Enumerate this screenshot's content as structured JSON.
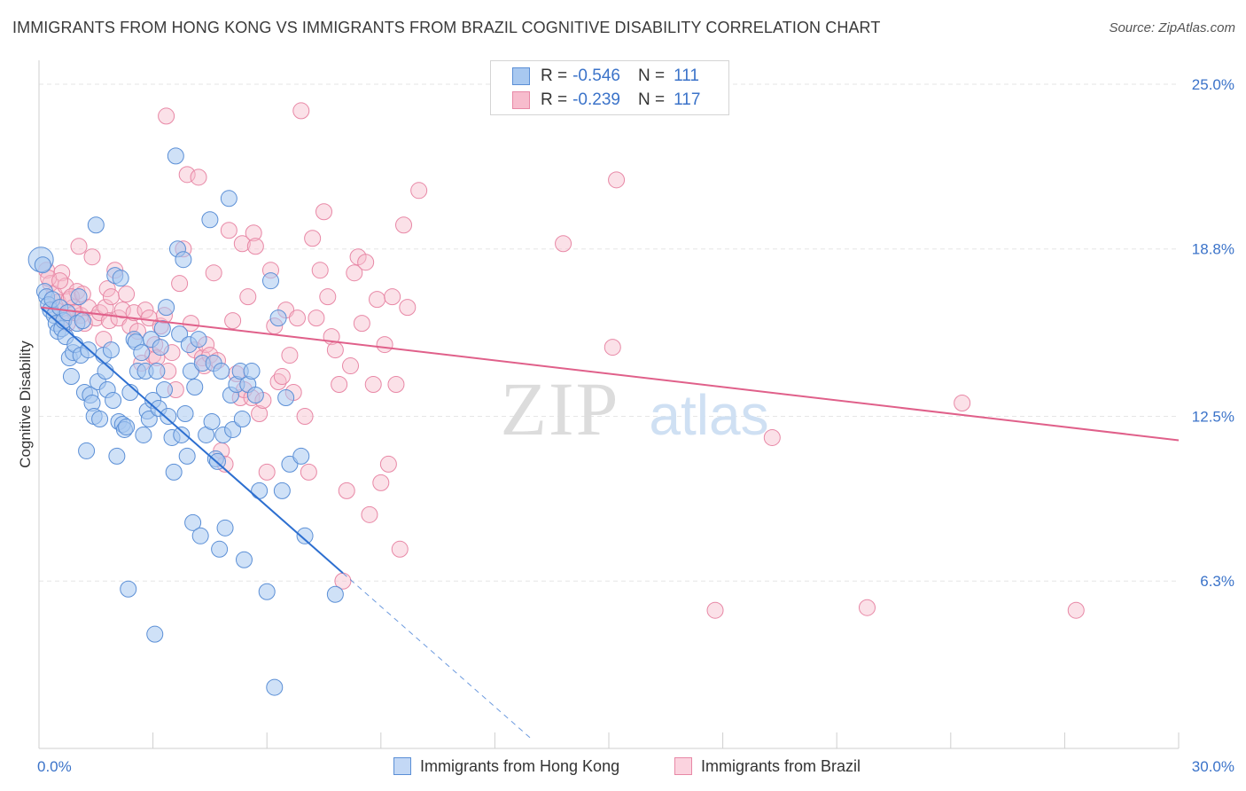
{
  "title": "IMMIGRANTS FROM HONG KONG VS IMMIGRANTS FROM BRAZIL COGNITIVE DISABILITY CORRELATION CHART",
  "source": "Source: ZipAtlas.com",
  "watermark": {
    "zip": "ZIP",
    "atlas": "atlas"
  },
  "colors": {
    "blue_fill": "#a8c8f0",
    "blue_stroke": "#5b8fd6",
    "blue_line": "#2d6fd0",
    "pink_fill": "#f7bccd",
    "pink_stroke": "#e888a6",
    "pink_line": "#e0608a",
    "axis_label": "#3b73c9",
    "grid": "#e6e6e6"
  },
  "legend": {
    "rows": [
      {
        "r_label": "R =",
        "r_value": "-0.546",
        "n_label": "N =",
        "n_value": "111"
      },
      {
        "r_label": "R =",
        "r_value": "-0.239",
        "n_label": "N =",
        "n_value": "117"
      }
    ]
  },
  "bottom_legend": {
    "hong_kong": "Immigrants from Hong Kong",
    "brazil": "Immigrants from Brazil"
  },
  "chart_data": {
    "type": "scatter",
    "xlabel": "",
    "ylabel": "Cognitive Disability",
    "xlim": [
      0,
      30
    ],
    "ylim": [
      0,
      25.9
    ],
    "x_tick_labels": [
      "0.0%",
      "30.0%"
    ],
    "y_ticks": [
      6.3,
      12.5,
      18.8,
      25.0
    ],
    "y_tick_labels": [
      "6.3%",
      "12.5%",
      "18.8%",
      "25.0%"
    ],
    "grid": true,
    "legend_position": "top-center",
    "series": [
      {
        "name": "Immigrants from Hong Kong",
        "r": -0.546,
        "n": 111,
        "trend": {
          "x0": 0.05,
          "y0": 16.6,
          "x1": 8.0,
          "y1": 6.6,
          "dash_to_x": 13.0
        },
        "points": [
          [
            0.05,
            18.4
          ],
          [
            0.1,
            18.2
          ],
          [
            0.15,
            17.2
          ],
          [
            0.2,
            17.0
          ],
          [
            0.25,
            16.7
          ],
          [
            0.3,
            16.5
          ],
          [
            0.35,
            16.9
          ],
          [
            0.4,
            16.3
          ],
          [
            0.45,
            16.0
          ],
          [
            0.5,
            15.7
          ],
          [
            0.55,
            16.6
          ],
          [
            0.6,
            15.8
          ],
          [
            0.65,
            16.1
          ],
          [
            0.7,
            15.5
          ],
          [
            0.75,
            16.4
          ],
          [
            0.8,
            14.7
          ],
          [
            0.85,
            14.0
          ],
          [
            0.9,
            14.9
          ],
          [
            0.95,
            15.2
          ],
          [
            1.0,
            16.0
          ],
          [
            1.05,
            17.0
          ],
          [
            1.1,
            14.8
          ],
          [
            1.15,
            16.1
          ],
          [
            1.2,
            13.4
          ],
          [
            1.25,
            11.2
          ],
          [
            1.3,
            15.0
          ],
          [
            1.35,
            13.3
          ],
          [
            1.4,
            13.0
          ],
          [
            1.45,
            12.5
          ],
          [
            1.5,
            19.7
          ],
          [
            1.55,
            13.8
          ],
          [
            1.6,
            12.4
          ],
          [
            1.7,
            14.8
          ],
          [
            1.75,
            14.2
          ],
          [
            1.8,
            13.5
          ],
          [
            1.9,
            15.0
          ],
          [
            1.95,
            13.1
          ],
          [
            2.0,
            17.8
          ],
          [
            2.05,
            11.0
          ],
          [
            2.1,
            12.3
          ],
          [
            2.15,
            17.7
          ],
          [
            2.2,
            12.2
          ],
          [
            2.25,
            12.0
          ],
          [
            2.3,
            12.1
          ],
          [
            2.35,
            6.0
          ],
          [
            2.4,
            13.4
          ],
          [
            2.5,
            15.4
          ],
          [
            2.55,
            15.3
          ],
          [
            2.6,
            14.2
          ],
          [
            2.7,
            14.9
          ],
          [
            2.75,
            11.8
          ],
          [
            2.8,
            14.2
          ],
          [
            2.85,
            12.7
          ],
          [
            2.9,
            12.4
          ],
          [
            2.95,
            15.4
          ],
          [
            3.0,
            13.1
          ],
          [
            3.05,
            4.3
          ],
          [
            3.1,
            14.2
          ],
          [
            3.15,
            12.8
          ],
          [
            3.2,
            15.1
          ],
          [
            3.25,
            15.8
          ],
          [
            3.3,
            13.5
          ],
          [
            3.35,
            16.6
          ],
          [
            3.4,
            12.5
          ],
          [
            3.5,
            11.7
          ],
          [
            3.55,
            10.4
          ],
          [
            3.6,
            22.3
          ],
          [
            3.65,
            18.8
          ],
          [
            3.7,
            15.6
          ],
          [
            3.75,
            11.8
          ],
          [
            3.8,
            18.4
          ],
          [
            3.85,
            12.6
          ],
          [
            3.9,
            11.0
          ],
          [
            3.95,
            15.2
          ],
          [
            4.0,
            14.2
          ],
          [
            4.05,
            8.5
          ],
          [
            4.1,
            13.6
          ],
          [
            4.2,
            15.4
          ],
          [
            4.25,
            8.0
          ],
          [
            4.3,
            14.5
          ],
          [
            4.4,
            11.8
          ],
          [
            4.5,
            19.9
          ],
          [
            4.55,
            12.3
          ],
          [
            4.6,
            14.5
          ],
          [
            4.65,
            10.9
          ],
          [
            4.7,
            10.8
          ],
          [
            4.75,
            7.5
          ],
          [
            4.8,
            14.2
          ],
          [
            4.85,
            11.8
          ],
          [
            4.9,
            8.3
          ],
          [
            5.0,
            20.7
          ],
          [
            5.05,
            13.3
          ],
          [
            5.1,
            12.0
          ],
          [
            5.2,
            13.7
          ],
          [
            5.3,
            14.2
          ],
          [
            5.35,
            12.4
          ],
          [
            5.4,
            7.1
          ],
          [
            5.5,
            13.7
          ],
          [
            5.6,
            14.2
          ],
          [
            5.7,
            13.3
          ],
          [
            5.8,
            9.7
          ],
          [
            6.0,
            5.9
          ],
          [
            6.1,
            17.6
          ],
          [
            6.2,
            2.3
          ],
          [
            6.3,
            16.2
          ],
          [
            6.4,
            9.7
          ],
          [
            6.6,
            10.7
          ],
          [
            6.9,
            11.0
          ],
          [
            7.0,
            8.0
          ],
          [
            7.8,
            5.8
          ],
          [
            6.5,
            13.2
          ]
        ]
      },
      {
        "name": "Immigrants from Brazil",
        "r": -0.239,
        "n": 117,
        "trend": {
          "x0": 0.05,
          "y0": 16.6,
          "x1": 30.0,
          "y1": 11.6
        },
        "points": [
          [
            0.2,
            18.0
          ],
          [
            0.3,
            17.5
          ],
          [
            0.4,
            17.1
          ],
          [
            0.5,
            16.8
          ],
          [
            0.6,
            17.9
          ],
          [
            0.7,
            17.4
          ],
          [
            0.8,
            16.9
          ],
          [
            0.9,
            16.6
          ],
          [
            1.0,
            17.2
          ],
          [
            1.1,
            16.3
          ],
          [
            0.25,
            17.7
          ],
          [
            0.45,
            16.5
          ],
          [
            0.55,
            17.6
          ],
          [
            0.65,
            16.2
          ],
          [
            0.75,
            16.0
          ],
          [
            0.85,
            17.0
          ],
          [
            0.95,
            16.4
          ],
          [
            1.05,
            18.9
          ],
          [
            1.15,
            17.1
          ],
          [
            1.2,
            16.0
          ],
          [
            1.3,
            16.6
          ],
          [
            1.4,
            18.5
          ],
          [
            1.5,
            16.2
          ],
          [
            1.6,
            16.4
          ],
          [
            1.7,
            15.4
          ],
          [
            1.75,
            16.6
          ],
          [
            1.8,
            17.3
          ],
          [
            1.85,
            16.1
          ],
          [
            1.9,
            17.0
          ],
          [
            2.0,
            18.0
          ],
          [
            2.1,
            16.2
          ],
          [
            2.2,
            16.5
          ],
          [
            2.3,
            17.1
          ],
          [
            2.4,
            15.9
          ],
          [
            2.5,
            16.4
          ],
          [
            2.6,
            15.7
          ],
          [
            2.7,
            14.5
          ],
          [
            2.8,
            16.5
          ],
          [
            2.9,
            16.2
          ],
          [
            3.0,
            14.8
          ],
          [
            3.05,
            15.2
          ],
          [
            3.1,
            14.7
          ],
          [
            3.2,
            15.9
          ],
          [
            3.3,
            16.3
          ],
          [
            3.35,
            23.8
          ],
          [
            3.4,
            14.2
          ],
          [
            3.5,
            14.9
          ],
          [
            3.6,
            13.5
          ],
          [
            3.7,
            17.5
          ],
          [
            3.8,
            18.8
          ],
          [
            3.9,
            21.6
          ],
          [
            4.0,
            16.0
          ],
          [
            4.1,
            15.0
          ],
          [
            4.2,
            21.5
          ],
          [
            4.3,
            14.7
          ],
          [
            4.35,
            14.4
          ],
          [
            4.4,
            15.2
          ],
          [
            4.5,
            14.8
          ],
          [
            4.6,
            17.9
          ],
          [
            4.7,
            14.6
          ],
          [
            4.8,
            11.2
          ],
          [
            4.9,
            10.7
          ],
          [
            5.0,
            19.5
          ],
          [
            5.1,
            16.1
          ],
          [
            5.2,
            14.1
          ],
          [
            5.3,
            13.2
          ],
          [
            5.35,
            19.0
          ],
          [
            5.4,
            13.5
          ],
          [
            5.5,
            17.0
          ],
          [
            5.6,
            13.2
          ],
          [
            5.65,
            19.4
          ],
          [
            5.7,
            18.9
          ],
          [
            5.8,
            12.6
          ],
          [
            5.9,
            13.1
          ],
          [
            6.0,
            10.4
          ],
          [
            6.1,
            18.0
          ],
          [
            6.2,
            15.9
          ],
          [
            6.3,
            13.8
          ],
          [
            6.4,
            14.0
          ],
          [
            6.5,
            16.5
          ],
          [
            6.6,
            14.8
          ],
          [
            6.7,
            13.4
          ],
          [
            6.8,
            16.2
          ],
          [
            6.9,
            24.0
          ],
          [
            7.0,
            12.5
          ],
          [
            7.1,
            10.4
          ],
          [
            7.2,
            19.2
          ],
          [
            7.3,
            16.2
          ],
          [
            7.4,
            18.0
          ],
          [
            7.5,
            20.2
          ],
          [
            7.6,
            17.0
          ],
          [
            7.7,
            15.5
          ],
          [
            7.8,
            15.0
          ],
          [
            7.9,
            13.7
          ],
          [
            8.0,
            6.3
          ],
          [
            8.1,
            9.7
          ],
          [
            8.2,
            14.4
          ],
          [
            8.3,
            17.9
          ],
          [
            8.4,
            18.5
          ],
          [
            8.5,
            16.0
          ],
          [
            8.6,
            18.3
          ],
          [
            8.7,
            8.8
          ],
          [
            8.8,
            13.7
          ],
          [
            8.9,
            16.9
          ],
          [
            9.0,
            10.0
          ],
          [
            9.1,
            15.2
          ],
          [
            9.2,
            10.7
          ],
          [
            9.3,
            17.0
          ],
          [
            9.4,
            13.7
          ],
          [
            9.5,
            7.5
          ],
          [
            9.6,
            19.7
          ],
          [
            9.7,
            16.6
          ],
          [
            10.0,
            21.0
          ],
          [
            15.2,
            21.4
          ],
          [
            13.8,
            19.0
          ],
          [
            17.8,
            5.2
          ],
          [
            21.8,
            5.3
          ],
          [
            27.3,
            5.2
          ],
          [
            24.3,
            13.0
          ],
          [
            19.3,
            11.7
          ],
          [
            15.1,
            15.1
          ]
        ]
      }
    ]
  }
}
